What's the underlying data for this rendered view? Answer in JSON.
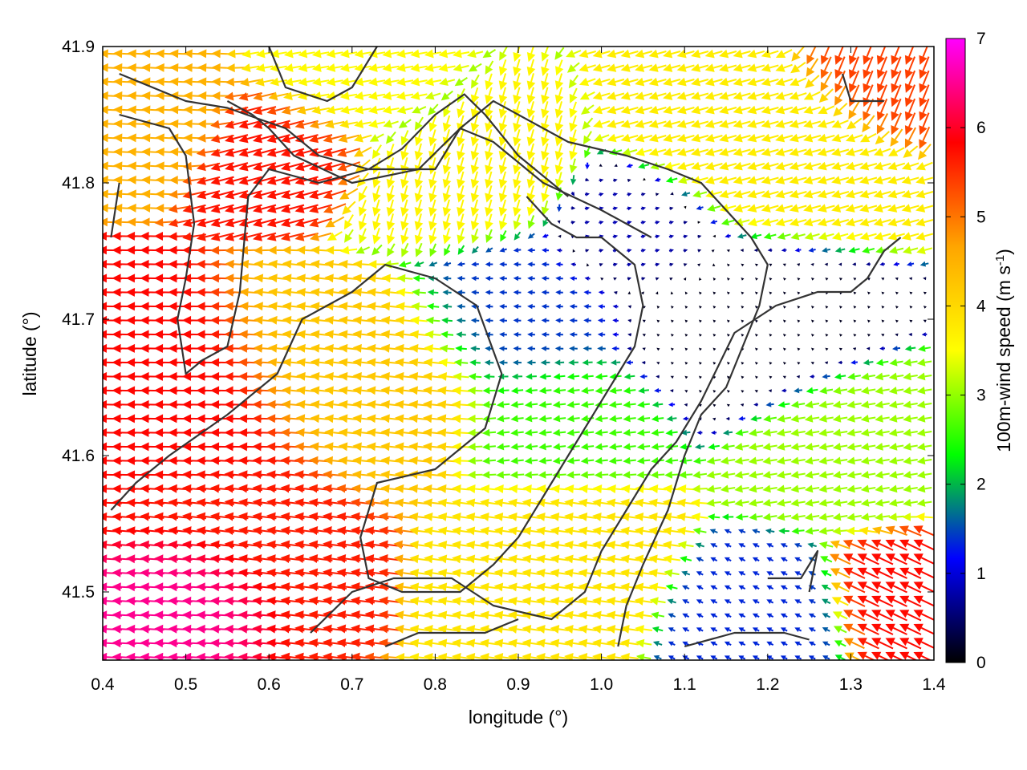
{
  "chart_data": {
    "type": "vector-field",
    "title": "",
    "xlabel": "longitude (°)",
    "ylabel": "latitude (°)",
    "xlim": [
      0.4,
      1.4
    ],
    "ylim": [
      41.45,
      41.9
    ],
    "xticks": [
      0.4,
      0.5,
      0.6,
      0.7,
      0.8,
      0.9,
      1.0,
      1.1,
      1.2,
      1.3,
      1.4
    ],
    "xtick_labels": [
      "0.4",
      "0.5",
      "0.6",
      "0.7",
      "0.8",
      "0.9",
      "1.0",
      "1.1",
      "1.2",
      "1.3",
      "1.4"
    ],
    "yticks": [
      41.5,
      41.6,
      41.7,
      41.8,
      41.9
    ],
    "ytick_labels": [
      "41.5",
      "41.6",
      "41.7",
      "41.8",
      "41.9"
    ],
    "colorbar": {
      "label_main": "100m-wind speed (m s",
      "label_sup": "-1",
      "label_end": ")",
      "range": [
        0,
        7
      ],
      "ticks": [
        0,
        1,
        2,
        3,
        4,
        5,
        6,
        7
      ],
      "tick_labels": [
        "0",
        "1",
        "2",
        "3",
        "4",
        "5",
        "6",
        "7"
      ],
      "palette": [
        "#000000",
        "#0000ff",
        "#00ff00",
        "#ffff00",
        "#ffa500",
        "#ff0000",
        "#ff00ff"
      ]
    },
    "grid": false,
    "legend": "none",
    "contour_color": "#333333",
    "contours": [
      [
        [
          0.42,
          41.88
        ],
        [
          0.5,
          41.86
        ],
        [
          0.55,
          41.855
        ],
        [
          0.62,
          41.84
        ],
        [
          0.66,
          41.82
        ],
        [
          0.72,
          41.81
        ],
        [
          0.76,
          41.825
        ],
        [
          0.8,
          41.85
        ],
        [
          0.835,
          41.865
        ],
        [
          0.86,
          41.85
        ],
        [
          0.9,
          41.82
        ],
        [
          0.96,
          41.79
        ]
      ],
      [
        [
          0.42,
          41.85
        ],
        [
          0.48,
          41.84
        ],
        [
          0.5,
          41.82
        ],
        [
          0.51,
          41.77
        ],
        [
          0.5,
          41.73
        ],
        [
          0.49,
          41.7
        ],
        [
          0.5,
          41.66
        ],
        [
          0.52,
          41.67
        ],
        [
          0.55,
          41.68
        ],
        [
          0.565,
          41.72
        ],
        [
          0.575,
          41.79
        ],
        [
          0.6,
          41.81
        ],
        [
          0.66,
          41.8
        ],
        [
          0.72,
          41.81
        ],
        [
          0.8,
          41.81
        ],
        [
          0.83,
          41.84
        ],
        [
          0.87,
          41.83
        ],
        [
          0.93,
          41.8
        ],
        [
          1.0,
          41.78
        ],
        [
          1.06,
          41.76
        ]
      ],
      [
        [
          0.41,
          41.76
        ],
        [
          0.42,
          41.8
        ]
      ],
      [
        [
          0.55,
          41.86
        ],
        [
          0.58,
          41.85
        ],
        [
          0.6,
          41.84
        ],
        [
          0.63,
          41.82
        ],
        [
          0.7,
          41.8
        ],
        [
          0.78,
          41.81
        ],
        [
          0.83,
          41.84
        ],
        [
          0.87,
          41.86
        ],
        [
          0.96,
          41.83
        ],
        [
          1.03,
          41.82
        ],
        [
          1.08,
          41.81
        ],
        [
          1.12,
          41.8
        ],
        [
          1.15,
          41.78
        ],
        [
          1.18,
          41.76
        ],
        [
          1.2,
          41.74
        ],
        [
          1.19,
          41.71
        ],
        [
          1.17,
          41.68
        ],
        [
          1.15,
          41.65
        ],
        [
          1.12,
          41.63
        ],
        [
          1.1,
          41.6
        ],
        [
          1.08,
          41.56
        ],
        [
          1.05,
          41.52
        ],
        [
          1.03,
          41.49
        ],
        [
          1.02,
          41.46
        ]
      ],
      [
        [
          0.41,
          41.56
        ],
        [
          0.44,
          41.58
        ],
        [
          0.48,
          41.6
        ],
        [
          0.55,
          41.63
        ],
        [
          0.61,
          41.66
        ],
        [
          0.64,
          41.7
        ],
        [
          0.7,
          41.72
        ],
        [
          0.74,
          41.74
        ],
        [
          0.8,
          41.73
        ],
        [
          0.85,
          41.71
        ],
        [
          0.88,
          41.66
        ],
        [
          0.86,
          41.62
        ],
        [
          0.8,
          41.59
        ],
        [
          0.73,
          41.58
        ],
        [
          0.71,
          41.54
        ],
        [
          0.72,
          41.51
        ],
        [
          0.76,
          41.5
        ],
        [
          0.83,
          41.5
        ],
        [
          0.87,
          41.52
        ],
        [
          0.9,
          41.54
        ],
        [
          0.93,
          41.57
        ],
        [
          0.98,
          41.62
        ],
        [
          1.02,
          41.66
        ],
        [
          1.04,
          41.68
        ],
        [
          1.05,
          41.71
        ],
        [
          1.04,
          41.74
        ],
        [
          1.0,
          41.76
        ],
        [
          0.97,
          41.76
        ],
        [
          0.94,
          41.77
        ],
        [
          0.91,
          41.79
        ]
      ],
      [
        [
          0.65,
          41.47
        ],
        [
          0.7,
          41.5
        ],
        [
          0.75,
          41.51
        ],
        [
          0.82,
          41.51
        ],
        [
          0.87,
          41.49
        ],
        [
          0.94,
          41.48
        ],
        [
          0.98,
          41.5
        ],
        [
          1.0,
          41.53
        ],
        [
          1.03,
          41.56
        ],
        [
          1.06,
          41.59
        ],
        [
          1.09,
          41.61
        ],
        [
          1.12,
          41.64
        ],
        [
          1.16,
          41.69
        ],
        [
          1.21,
          41.71
        ],
        [
          1.26,
          41.72
        ],
        [
          1.3,
          41.72
        ],
        [
          1.32,
          41.73
        ],
        [
          1.34,
          41.75
        ],
        [
          1.36,
          41.76
        ]
      ],
      [
        [
          0.74,
          41.46
        ],
        [
          0.78,
          41.47
        ],
        [
          0.86,
          41.47
        ],
        [
          0.9,
          41.48
        ]
      ],
      [
        [
          1.1,
          41.46
        ],
        [
          1.16,
          41.47
        ],
        [
          1.22,
          41.47
        ],
        [
          1.25,
          41.465
        ]
      ],
      [
        [
          1.2,
          41.51
        ],
        [
          1.24,
          41.51
        ],
        [
          1.26,
          41.53
        ],
        [
          1.25,
          41.5
        ]
      ],
      [
        [
          1.29,
          41.88
        ],
        [
          1.3,
          41.86
        ],
        [
          1.34,
          41.86
        ]
      ],
      [
        [
          0.6,
          41.9
        ],
        [
          0.62,
          41.87
        ],
        [
          0.67,
          41.86
        ],
        [
          0.7,
          41.87
        ],
        [
          0.73,
          41.9
        ]
      ]
    ],
    "wind_regimes": [
      {
        "lon": 0.48,
        "lat": 41.62,
        "u": -5.8,
        "v": 0.1,
        "r": 0.09
      },
      {
        "lon": 0.5,
        "lat": 41.51,
        "u": -6.5,
        "v": 0.3,
        "r": 0.05
      },
      {
        "lon": 0.62,
        "lat": 41.82,
        "u": -5.5,
        "v": -1.5,
        "r": 0.05
      },
      {
        "lon": 0.55,
        "lat": 41.55,
        "u": -5.6,
        "v": 0.7,
        "r": 0.07
      },
      {
        "lon": 0.72,
        "lat": 41.66,
        "u": -4.2,
        "v": 0.4,
        "r": 0.08
      },
      {
        "lon": 0.82,
        "lat": 41.8,
        "u": -1.0,
        "v": -3.5,
        "r": 0.06
      },
      {
        "lon": 0.9,
        "lat": 41.7,
        "u": -1.4,
        "v": 0.1,
        "r": 0.07
      },
      {
        "lon": 0.95,
        "lat": 41.63,
        "u": -2.6,
        "v": -0.3,
        "r": 0.06
      },
      {
        "lon": 1.15,
        "lat": 41.7,
        "u": -0.1,
        "v": 0.1,
        "r": 0.07
      },
      {
        "lon": 1.05,
        "lat": 41.76,
        "u": 0.8,
        "v": 0.2,
        "r": 0.05
      },
      {
        "lon": 1.2,
        "lat": 41.82,
        "u": -3.6,
        "v": -1.0,
        "r": 0.07
      },
      {
        "lon": 1.3,
        "lat": 41.6,
        "u": -3.0,
        "v": -0.5,
        "r": 0.06
      },
      {
        "lon": 1.37,
        "lat": 41.5,
        "u": -5.2,
        "v": 2.5,
        "r": 0.05
      },
      {
        "lon": 1.35,
        "lat": 41.88,
        "u": -2.0,
        "v": -5.0,
        "r": 0.05
      },
      {
        "lon": 0.95,
        "lat": 41.53,
        "u": -3.8,
        "v": 0.5,
        "r": 0.06
      },
      {
        "lon": 0.45,
        "lat": 41.85,
        "u": -4.5,
        "v": 0.2,
        "r": 0.05
      },
      {
        "lon": 0.7,
        "lat": 41.87,
        "u": -3.5,
        "v": -0.6,
        "r": 0.05
      },
      {
        "lon": 1.2,
        "lat": 41.49,
        "u": -1.2,
        "v": 0.6,
        "r": 0.05
      }
    ]
  }
}
